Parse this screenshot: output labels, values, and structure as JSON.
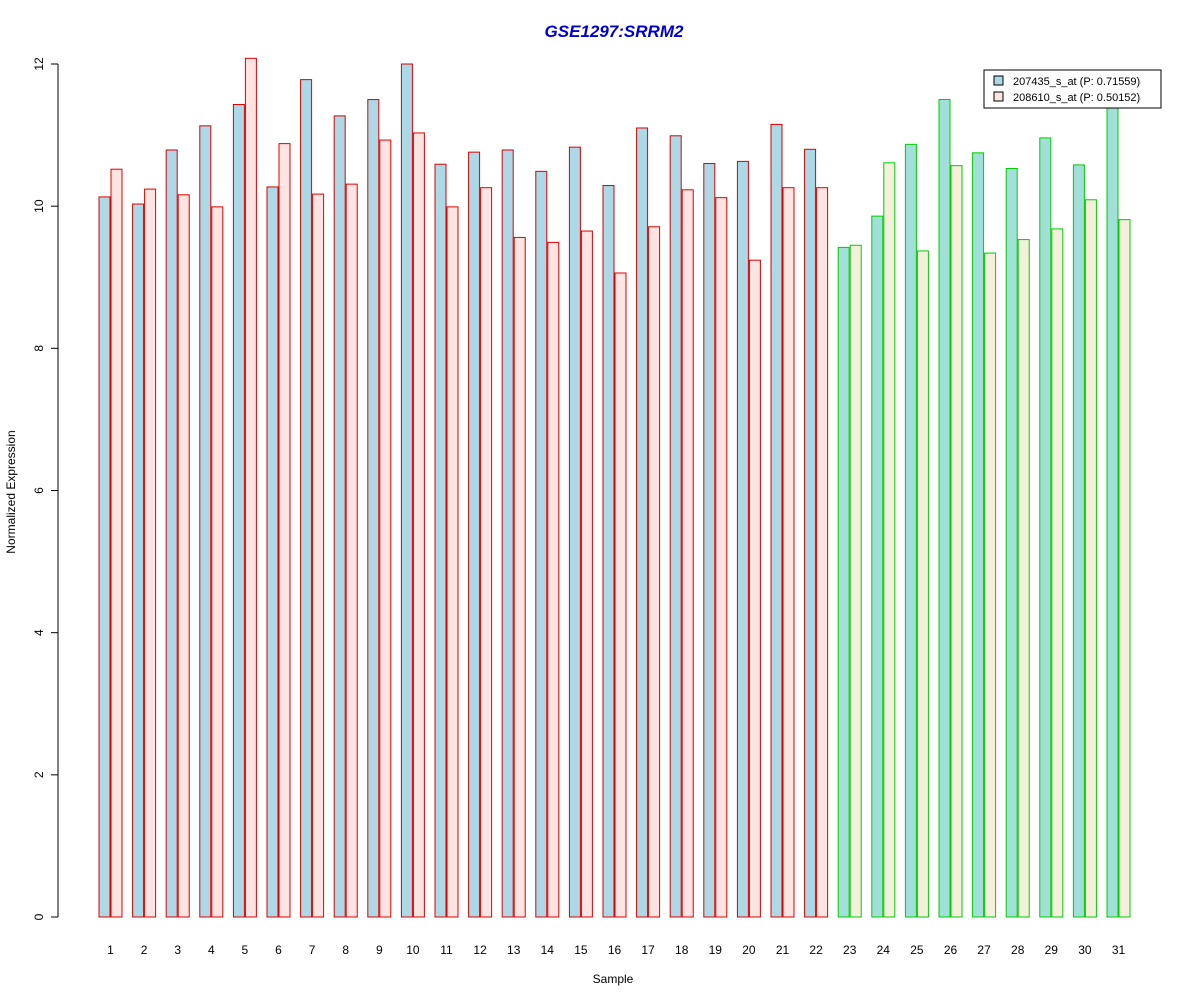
{
  "chart_data": {
    "type": "bar",
    "title": "GSE1297:SRRM2",
    "xlabel": "Sample",
    "ylabel": "Normalized Expression",
    "ylim": [
      0,
      12
    ],
    "yticks": [
      "0",
      "2",
      "4",
      "6",
      "8",
      "10",
      "12"
    ],
    "grid": false,
    "legend_position": "top-right",
    "categories": [
      "1",
      "2",
      "3",
      "4",
      "5",
      "6",
      "7",
      "8",
      "9",
      "10",
      "11",
      "12",
      "13",
      "14",
      "15",
      "16",
      "17",
      "18",
      "19",
      "20",
      "21",
      "22",
      "23",
      "24",
      "25",
      "26",
      "27",
      "28",
      "29",
      "30",
      "31"
    ],
    "group_a_count": 22,
    "series": [
      {
        "name": "207435_s_at (P: 0.71559)",
        "values": [
          10.13,
          10.03,
          10.79,
          11.13,
          11.43,
          10.27,
          11.78,
          11.27,
          11.5,
          12.0,
          10.59,
          10.76,
          10.79,
          10.49,
          10.83,
          10.29,
          11.1,
          10.99,
          10.6,
          10.63,
          11.15,
          10.8,
          9.42,
          9.86,
          10.87,
          11.5,
          10.75,
          10.53,
          10.96,
          10.58,
          11.4
        ]
      },
      {
        "name": "208610_s_at (P: 0.50152)",
        "values": [
          10.52,
          10.24,
          10.16,
          9.99,
          12.08,
          10.88,
          10.17,
          10.31,
          10.93,
          11.03,
          9.99,
          10.26,
          9.56,
          9.49,
          9.65,
          9.06,
          9.71,
          10.23,
          10.12,
          9.24,
          10.26,
          10.26,
          9.45,
          10.61,
          9.37,
          10.57,
          9.34,
          9.53,
          9.68,
          10.09,
          9.81
        ]
      }
    ],
    "colors": {
      "title": "#0000cc",
      "series1_fill": "#add8e6",
      "series2_fill_group_a": "#ffe4e1",
      "series2_fill_group_b": "#f5f0dc",
      "series1_fill_group_b": "#a0e0d8",
      "border_group_a": "#dd0000",
      "border_group_b": "#00cc00",
      "legend_swatch_1": "#add8e6",
      "legend_swatch_2": "#ffe4e1"
    }
  }
}
